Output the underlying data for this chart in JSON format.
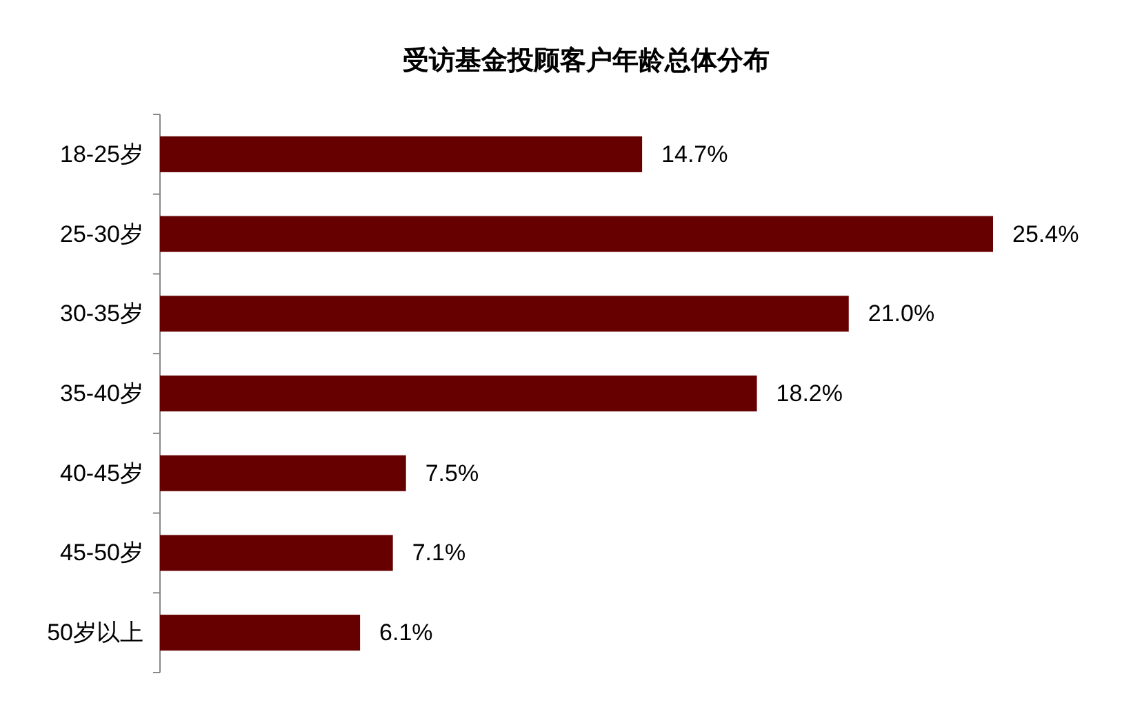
{
  "chart_data": {
    "type": "bar",
    "orientation": "horizontal",
    "title": "受访基金投顾客户年龄总体分布",
    "categories": [
      "18-25岁",
      "25-30岁",
      "30-35岁",
      "35-40岁",
      "40-45岁",
      "45-50岁",
      "50岁以上"
    ],
    "values": [
      14.7,
      25.4,
      21.0,
      18.2,
      7.5,
      7.1,
      6.1
    ],
    "value_labels": [
      "14.7%",
      "25.4%",
      "21.0%",
      "18.2%",
      "7.5%",
      "7.1%",
      "6.1%"
    ],
    "color": "#660000"
  }
}
